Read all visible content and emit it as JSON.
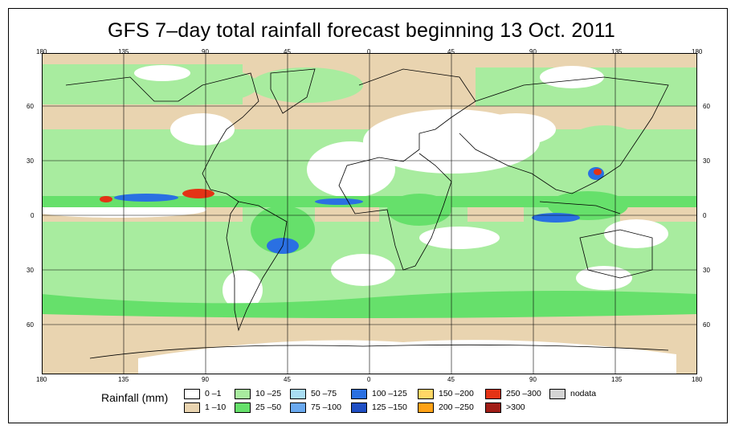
{
  "title": "GFS 7–day total rainfall forecast beginning 13 Oct. 2011",
  "lon_ticks": [
    "180",
    "135",
    "90",
    "45",
    "0",
    "45",
    "90",
    "135",
    "180"
  ],
  "lat_ticks_left": [
    "60",
    "30",
    "0",
    "30",
    "60"
  ],
  "lat_ticks_right": [
    "60",
    "30",
    "0",
    "30",
    "60"
  ],
  "legend": {
    "title": "Rainfall (mm)",
    "items": [
      {
        "label": "0 –1",
        "color": "#ffffff"
      },
      {
        "label": "1 –10",
        "color": "#e9d4b0"
      },
      {
        "label": "10 –25",
        "color": "#a8ec9f"
      },
      {
        "label": "25 –50",
        "color": "#66e06b"
      },
      {
        "label": "50 –75",
        "color": "#a9ddf3"
      },
      {
        "label": "75 –100",
        "color": "#6aa9ef"
      },
      {
        "label": "100 –125",
        "color": "#2a70e2"
      },
      {
        "label": "125 –150",
        "color": "#1f4fc4"
      },
      {
        "label": "150 –200",
        "color": "#ffd766"
      },
      {
        "label": "200 –250",
        "color": "#ffa216"
      },
      {
        "label": "250 –300",
        "color": "#e43315"
      },
      {
        "label": ">300",
        "color": "#a11d17"
      },
      {
        "label": "nodata",
        "color": "#d4d4d4"
      }
    ]
  },
  "colors": {
    "ocean_dry": "#ffffff",
    "light": "#e9d4b0",
    "moderate": "#a8ec9f",
    "heavy": "#66e06b",
    "very_heavy": "#2a70e2",
    "extreme": "#e43315",
    "coast": "#000000"
  }
}
